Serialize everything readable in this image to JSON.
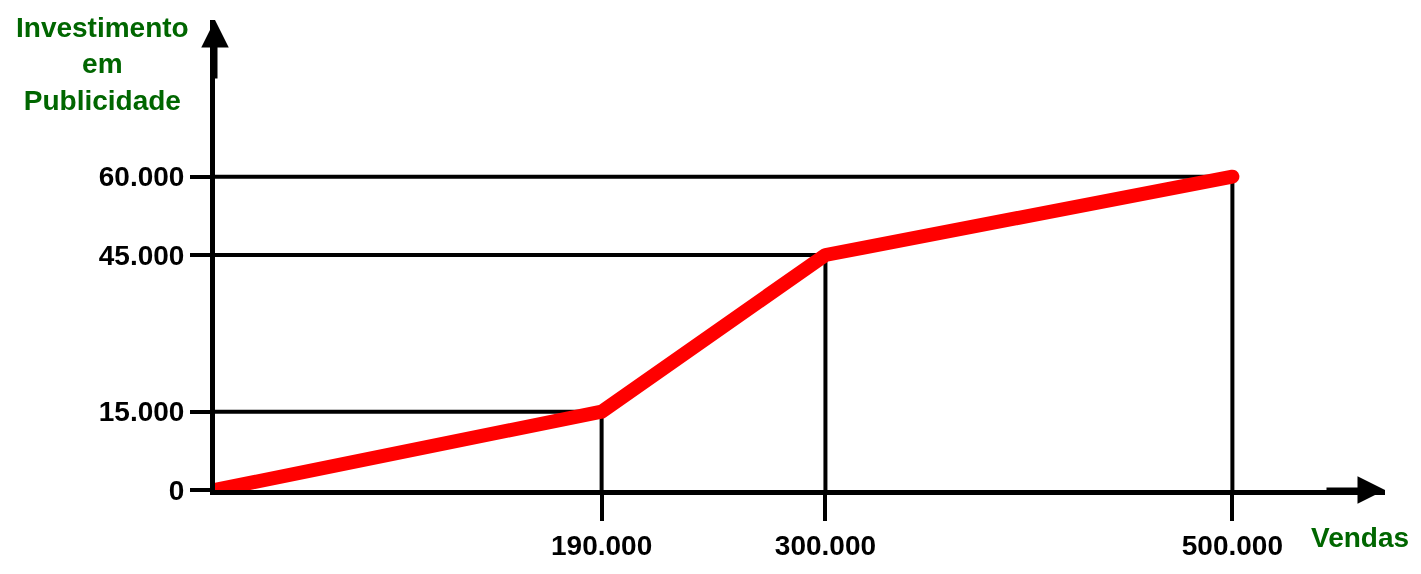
{
  "chart_data": {
    "type": "line",
    "xlabel": "Vendas",
    "ylabel": "Investimento em Publicidade",
    "x": [
      0,
      190000,
      300000,
      500000
    ],
    "values": [
      0,
      15000,
      45000,
      60000
    ],
    "color": "#ff0000",
    "line_style": "solid",
    "xlim": [
      0,
      575000
    ],
    "ylim": [
      0,
      90000
    ],
    "xticks": [
      {
        "value": 190000,
        "label": "190.000"
      },
      {
        "value": 300000,
        "label": "300.000"
      },
      {
        "value": 500000,
        "label": "500.000"
      }
    ],
    "yticks": [
      0,
      {
        "value": 15000,
        "label": "15.000"
      },
      {
        "value": 45000,
        "label": "45.000"
      },
      {
        "value": 60000,
        "label": "60.000"
      }
    ],
    "ref_lines": [
      {
        "axis": "y",
        "value": 15000,
        "color": "#000000"
      },
      {
        "axis": "y",
        "value": 45000,
        "color": "#000000"
      },
      {
        "axis": "y",
        "value": 60000,
        "color": "#000000"
      },
      {
        "axis": "x",
        "value": 190000,
        "color": "#000000"
      },
      {
        "axis": "x",
        "value": 300000,
        "color": "#000000"
      },
      {
        "axis": "x",
        "value": 500000,
        "color": "#000000"
      }
    ]
  }
}
